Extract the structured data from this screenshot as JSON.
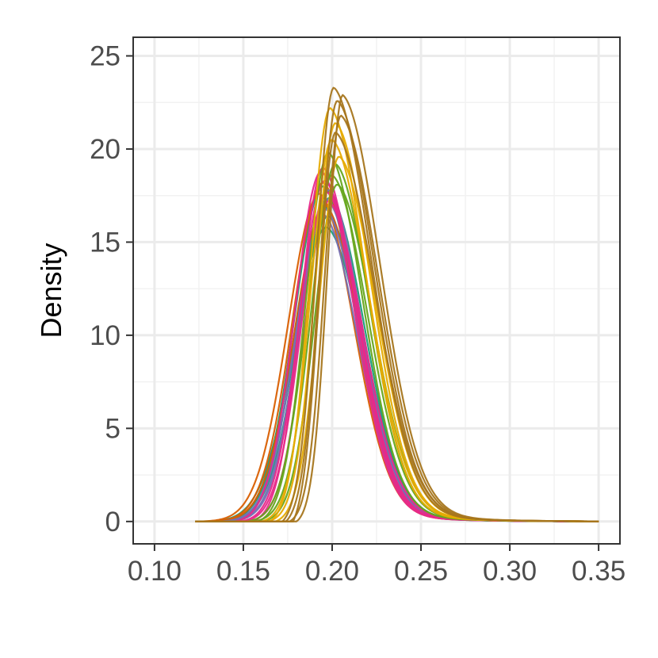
{
  "chart_data": {
    "type": "line",
    "title": "",
    "xlabel": "",
    "ylabel": "Density",
    "xlim": [
      0.088,
      0.362
    ],
    "ylim": [
      -1.2,
      26.0
    ],
    "x_ticks": [
      0.1,
      0.15,
      0.2,
      0.25,
      0.3,
      0.35
    ],
    "x_tick_labels": [
      "0.10",
      "0.15",
      "0.20",
      "0.25",
      "0.30",
      "0.35"
    ],
    "y_ticks": [
      0,
      5,
      10,
      15,
      20,
      25
    ],
    "y_tick_labels": [
      "0",
      "5",
      "10",
      "15",
      "20",
      "25"
    ],
    "grid": true,
    "legend": "none",
    "x_range": [
      0.123,
      0.35
    ],
    "curve_shape_note": "Each series is a smooth unimodal density starting at 0 near x_start, peaking at (peak_x, peak_y), with a long right tail reaching 0 at x=0.35.",
    "series": [
      {
        "color": "#1B9E77",
        "x_start": 0.13,
        "peak_x": 0.197,
        "peak_y": 15.8,
        "width_left": 0.026,
        "width_right": 0.03
      },
      {
        "color": "#1B9E77",
        "x_start": 0.132,
        "peak_x": 0.198,
        "peak_y": 16.4,
        "width_left": 0.025,
        "width_right": 0.029
      },
      {
        "color": "#1B9E77",
        "x_start": 0.134,
        "peak_x": 0.196,
        "peak_y": 16.9,
        "width_left": 0.024,
        "width_right": 0.029
      },
      {
        "color": "#1B9E77",
        "x_start": 0.133,
        "peak_x": 0.199,
        "peak_y": 17.4,
        "width_left": 0.024,
        "width_right": 0.028
      },
      {
        "color": "#1B9E77",
        "x_start": 0.136,
        "peak_x": 0.195,
        "peak_y": 18.0,
        "width_left": 0.023,
        "width_right": 0.028
      },
      {
        "color": "#D95F02",
        "x_start": 0.123,
        "peak_x": 0.193,
        "peak_y": 17.6,
        "width_left": 0.025,
        "width_right": 0.028
      },
      {
        "color": "#D95F02",
        "x_start": 0.126,
        "peak_x": 0.195,
        "peak_y": 18.2,
        "width_left": 0.024,
        "width_right": 0.027
      },
      {
        "color": "#D95F02",
        "x_start": 0.129,
        "peak_x": 0.196,
        "peak_y": 17.0,
        "width_left": 0.024,
        "width_right": 0.028
      },
      {
        "color": "#7570B3",
        "x_start": 0.136,
        "peak_x": 0.196,
        "peak_y": 16.8,
        "width_left": 0.023,
        "width_right": 0.028
      },
      {
        "color": "#7570B3",
        "x_start": 0.138,
        "peak_x": 0.197,
        "peak_y": 17.3,
        "width_left": 0.022,
        "width_right": 0.028
      },
      {
        "color": "#7570B3",
        "x_start": 0.14,
        "peak_x": 0.198,
        "peak_y": 17.8,
        "width_left": 0.022,
        "width_right": 0.027
      },
      {
        "color": "#7570B3",
        "x_start": 0.142,
        "peak_x": 0.195,
        "peak_y": 16.5,
        "width_left": 0.022,
        "width_right": 0.028
      },
      {
        "color": "#E7298A",
        "x_start": 0.145,
        "peak_x": 0.194,
        "peak_y": 18.8,
        "width_left": 0.021,
        "width_right": 0.027
      },
      {
        "color": "#E7298A",
        "x_start": 0.148,
        "peak_x": 0.196,
        "peak_y": 18.3,
        "width_left": 0.02,
        "width_right": 0.027
      },
      {
        "color": "#E7298A",
        "x_start": 0.15,
        "peak_x": 0.197,
        "peak_y": 17.7,
        "width_left": 0.02,
        "width_right": 0.027
      },
      {
        "color": "#E7298A",
        "x_start": 0.152,
        "peak_x": 0.198,
        "peak_y": 17.2,
        "width_left": 0.019,
        "width_right": 0.028
      },
      {
        "color": "#E7298A",
        "x_start": 0.155,
        "peak_x": 0.195,
        "peak_y": 19.0,
        "width_left": 0.018,
        "width_right": 0.027
      },
      {
        "color": "#66A61E",
        "x_start": 0.152,
        "peak_x": 0.2,
        "peak_y": 18.6,
        "width_left": 0.02,
        "width_right": 0.029
      },
      {
        "color": "#66A61E",
        "x_start": 0.155,
        "peak_x": 0.202,
        "peak_y": 19.2,
        "width_left": 0.019,
        "width_right": 0.028
      },
      {
        "color": "#66A61E",
        "x_start": 0.158,
        "peak_x": 0.198,
        "peak_y": 19.8,
        "width_left": 0.018,
        "width_right": 0.028
      },
      {
        "color": "#66A61E",
        "x_start": 0.16,
        "peak_x": 0.203,
        "peak_y": 18.1,
        "width_left": 0.018,
        "width_right": 0.029
      },
      {
        "color": "#E6AB02",
        "x_start": 0.16,
        "peak_x": 0.2,
        "peak_y": 20.5,
        "width_left": 0.017,
        "width_right": 0.03
      },
      {
        "color": "#E6AB02",
        "x_start": 0.163,
        "peak_x": 0.202,
        "peak_y": 21.4,
        "width_left": 0.016,
        "width_right": 0.029
      },
      {
        "color": "#E6AB02",
        "x_start": 0.165,
        "peak_x": 0.199,
        "peak_y": 22.2,
        "width_left": 0.016,
        "width_right": 0.029
      },
      {
        "color": "#E6AB02",
        "x_start": 0.168,
        "peak_x": 0.204,
        "peak_y": 19.6,
        "width_left": 0.016,
        "width_right": 0.03
      },
      {
        "color": "#A6761D",
        "x_start": 0.172,
        "peak_x": 0.201,
        "peak_y": 23.3,
        "width_left": 0.014,
        "width_right": 0.031
      },
      {
        "color": "#A6761D",
        "x_start": 0.174,
        "peak_x": 0.203,
        "peak_y": 22.6,
        "width_left": 0.014,
        "width_right": 0.031
      },
      {
        "color": "#A6761D",
        "x_start": 0.176,
        "peak_x": 0.205,
        "peak_y": 21.8,
        "width_left": 0.013,
        "width_right": 0.031
      },
      {
        "color": "#A6761D",
        "x_start": 0.178,
        "peak_x": 0.202,
        "peak_y": 20.9,
        "width_left": 0.013,
        "width_right": 0.032
      },
      {
        "color": "#A6761D",
        "x_start": 0.18,
        "peak_x": 0.206,
        "peak_y": 22.9,
        "width_left": 0.012,
        "width_right": 0.031
      }
    ]
  }
}
